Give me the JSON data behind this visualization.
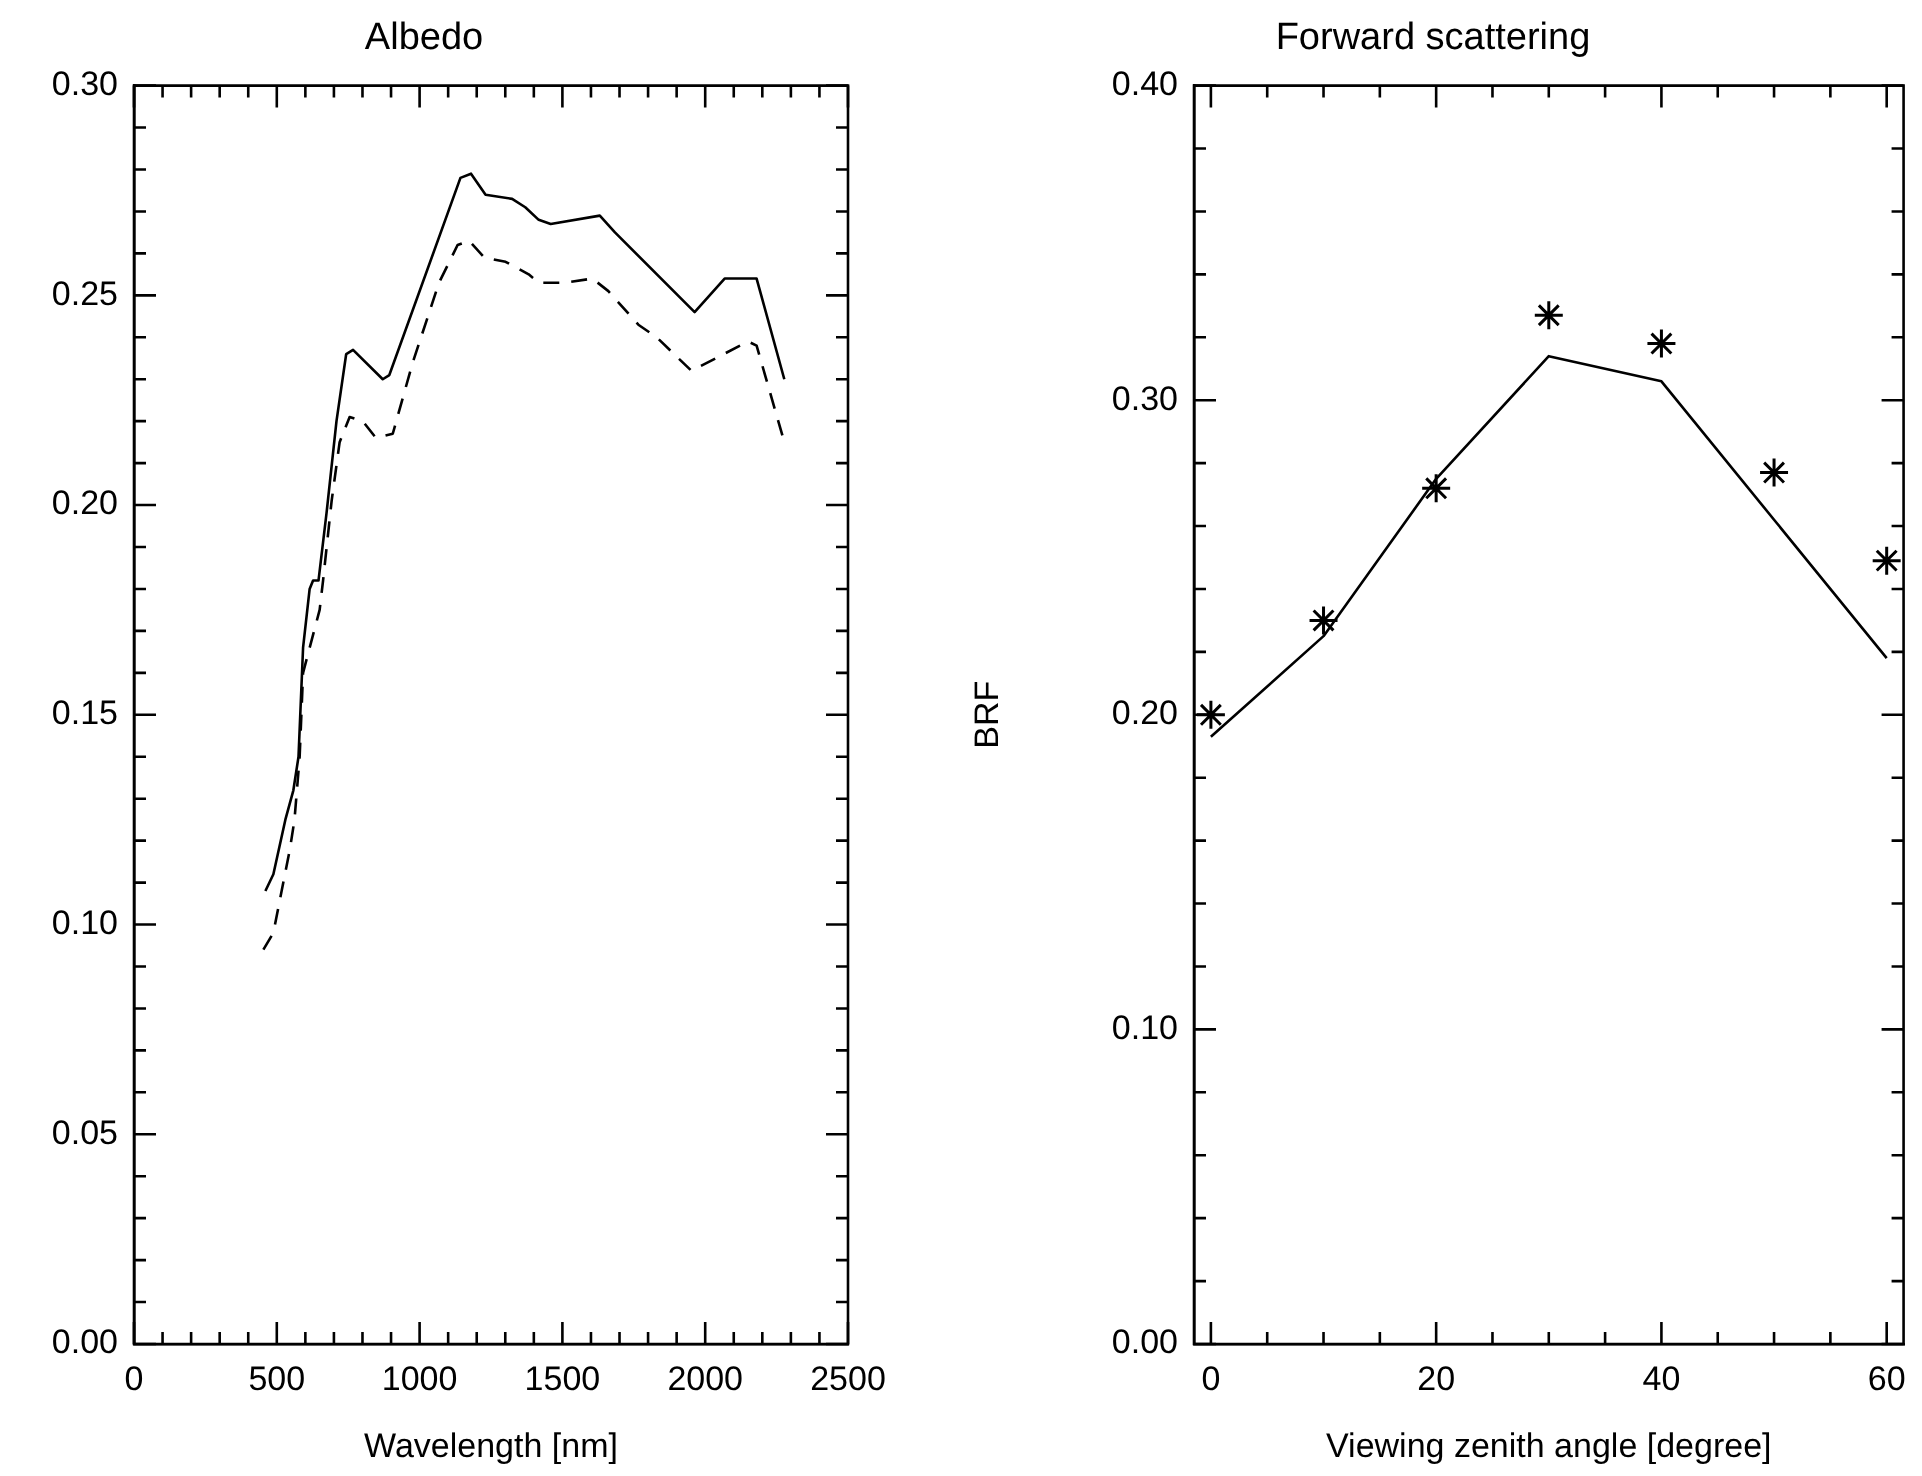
{
  "chart_data": [
    {
      "type": "line",
      "title": "Albedo",
      "xlabel": "Wavelength [nm]",
      "xlim": [
        0,
        2500
      ],
      "xticks": [
        0,
        {
          "value": 100,
          "label": null
        },
        {
          "value": 200,
          "label": null
        },
        {
          "value": 300,
          "label": null
        },
        {
          "value": 400,
          "label": null
        },
        500,
        {
          "value": 600,
          "label": null
        },
        {
          "value": 700,
          "label": null
        },
        {
          "value": 800,
          "label": null
        },
        {
          "value": 900,
          "label": null
        },
        1000,
        {
          "value": 1100,
          "label": null
        },
        {
          "value": 1200,
          "label": null
        },
        {
          "value": 1300,
          "label": null
        },
        {
          "value": 1400,
          "label": null
        },
        1500,
        {
          "value": 1600,
          "label": null
        },
        {
          "value": 1700,
          "label": null
        },
        {
          "value": 1800,
          "label": null
        },
        {
          "value": 1900,
          "label": null
        },
        2000,
        {
          "value": 2100,
          "label": null
        },
        {
          "value": 2200,
          "label": null
        },
        {
          "value": 2300,
          "label": null
        },
        {
          "value": 2400,
          "label": null
        },
        2500
      ],
      "ylim": [
        0,
        0.3
      ],
      "yticks": [
        {
          "value": 0,
          "label": "0.00"
        },
        {
          "value": 0.01,
          "label": null
        },
        {
          "value": 0.02,
          "label": null
        },
        {
          "value": 0.03,
          "label": null
        },
        {
          "value": 0.04,
          "label": null
        },
        {
          "value": 0.05,
          "label": "0.05"
        },
        {
          "value": 0.06,
          "label": null
        },
        {
          "value": 0.07,
          "label": null
        },
        {
          "value": 0.08,
          "label": null
        },
        {
          "value": 0.09,
          "label": null
        },
        {
          "value": 0.1,
          "label": "0.10"
        },
        {
          "value": 0.11,
          "label": null
        },
        {
          "value": 0.12,
          "label": null
        },
        {
          "value": 0.13,
          "label": null
        },
        {
          "value": 0.14,
          "label": null
        },
        {
          "value": 0.15,
          "label": "0.15"
        },
        {
          "value": 0.16,
          "label": null
        },
        {
          "value": 0.17,
          "label": null
        },
        {
          "value": 0.18,
          "label": null
        },
        {
          "value": 0.19,
          "label": null
        },
        {
          "value": 0.2,
          "label": "0.20"
        },
        {
          "value": 0.21,
          "label": null
        },
        {
          "value": 0.22,
          "label": null
        },
        {
          "value": 0.23,
          "label": null
        },
        {
          "value": 0.24,
          "label": null
        },
        {
          "value": 0.25,
          "label": "0.25"
        },
        {
          "value": 0.26,
          "label": null
        },
        {
          "value": 0.27,
          "label": null
        },
        {
          "value": 0.28,
          "label": null
        },
        {
          "value": 0.29,
          "label": null
        },
        {
          "value": 0.3,
          "label": "0.30"
        }
      ],
      "grid": false,
      "legend": false,
      "marker": "none",
      "series": [
        {
          "color": "#000000",
          "line_style": "solid",
          "x": [
            460,
            488,
            530,
            558,
            576,
            592,
            615,
            627,
            646,
            674,
            709,
            743,
            767,
            871,
            894,
            1143,
            1180,
            1231,
            1324,
            1370,
            1417,
            1459,
            1631,
            1684,
            1963,
            2068,
            2180,
            2277
          ],
          "values": [
            0.108,
            0.112,
            0.125,
            0.132,
            0.14,
            0.166,
            0.18,
            0.182,
            0.182,
            0.198,
            0.22,
            0.236,
            0.237,
            0.23,
            0.231,
            0.278,
            0.279,
            0.274,
            0.273,
            0.271,
            0.268,
            0.267,
            0.269,
            0.265,
            0.246,
            0.254,
            0.254,
            0.23
          ]
        },
        {
          "color": "#000000",
          "line_style": "dashed",
          "x": [
            453,
            488,
            511,
            546,
            562,
            580,
            592,
            615,
            650,
            662,
            692,
            720,
            755,
            801,
            847,
            906,
            976,
            1068,
            1133,
            1173,
            1227,
            1301,
            1382,
            1417,
            1508,
            1605,
            1661,
            1766,
            1830,
            1952,
            2150,
            2180,
            2277
          ],
          "values": [
            0.094,
            0.098,
            0.106,
            0.118,
            0.125,
            0.14,
            0.16,
            0.166,
            0.175,
            0.182,
            0.201,
            0.215,
            0.221,
            0.22,
            0.216,
            0.217,
            0.234,
            0.253,
            0.262,
            0.263,
            0.259,
            0.258,
            0.255,
            0.253,
            0.253,
            0.254,
            0.251,
            0.243,
            0.24,
            0.232,
            0.239,
            0.238,
            0.215
          ]
        }
      ]
    },
    {
      "type": "scatter",
      "title": "Forward scattering",
      "xlabel": "Viewing zenith angle [degree]",
      "ylabel": "BRF",
      "xlim": [
        -1.5,
        61.5
      ],
      "xticks": [
        0,
        {
          "value": 5,
          "label": null
        },
        {
          "value": 10,
          "label": null
        },
        {
          "value": 15,
          "label": null
        },
        20,
        {
          "value": 25,
          "label": null
        },
        {
          "value": 30,
          "label": null
        },
        {
          "value": 35,
          "label": null
        },
        40,
        {
          "value": 45,
          "label": null
        },
        {
          "value": 50,
          "label": null
        },
        {
          "value": 55,
          "label": null
        },
        60
      ],
      "ylim": [
        0,
        0.4
      ],
      "yticks": [
        {
          "value": 0,
          "label": "0.00"
        },
        {
          "value": 0.02,
          "label": null
        },
        {
          "value": 0.04,
          "label": null
        },
        {
          "value": 0.06,
          "label": null
        },
        {
          "value": 0.08,
          "label": null
        },
        {
          "value": 0.1,
          "label": "0.10"
        },
        {
          "value": 0.12,
          "label": null
        },
        {
          "value": 0.14,
          "label": null
        },
        {
          "value": 0.16,
          "label": null
        },
        {
          "value": 0.18,
          "label": null
        },
        {
          "value": 0.2,
          "label": "0.20"
        },
        {
          "value": 0.22,
          "label": null
        },
        {
          "value": 0.24,
          "label": null
        },
        {
          "value": 0.26,
          "label": null
        },
        {
          "value": 0.28,
          "label": null
        },
        {
          "value": 0.3,
          "label": "0.30"
        },
        {
          "value": 0.32,
          "label": null
        },
        {
          "value": 0.34,
          "label": null
        },
        {
          "value": 0.36,
          "label": null
        },
        {
          "value": 0.38,
          "label": null
        },
        {
          "value": 0.4,
          "label": "0.40"
        }
      ],
      "grid": false,
      "legend": false,
      "series": [
        {
          "type": "scatter",
          "marker": "cross",
          "color": "#000000",
          "x": [
            0,
            10,
            20,
            30,
            40,
            50,
            60
          ],
          "values": [
            0.2,
            0.23,
            0.272,
            0.327,
            0.318,
            0.277,
            0.249
          ]
        },
        {
          "type": "line",
          "marker": "none",
          "line_style": "solid",
          "color": "#000000",
          "x": [
            0,
            10,
            20,
            30,
            40,
            50,
            60
          ],
          "values": [
            0.193,
            0.225,
            0.275,
            0.314,
            0.306,
            0.262,
            0.218
          ]
        }
      ]
    }
  ]
}
